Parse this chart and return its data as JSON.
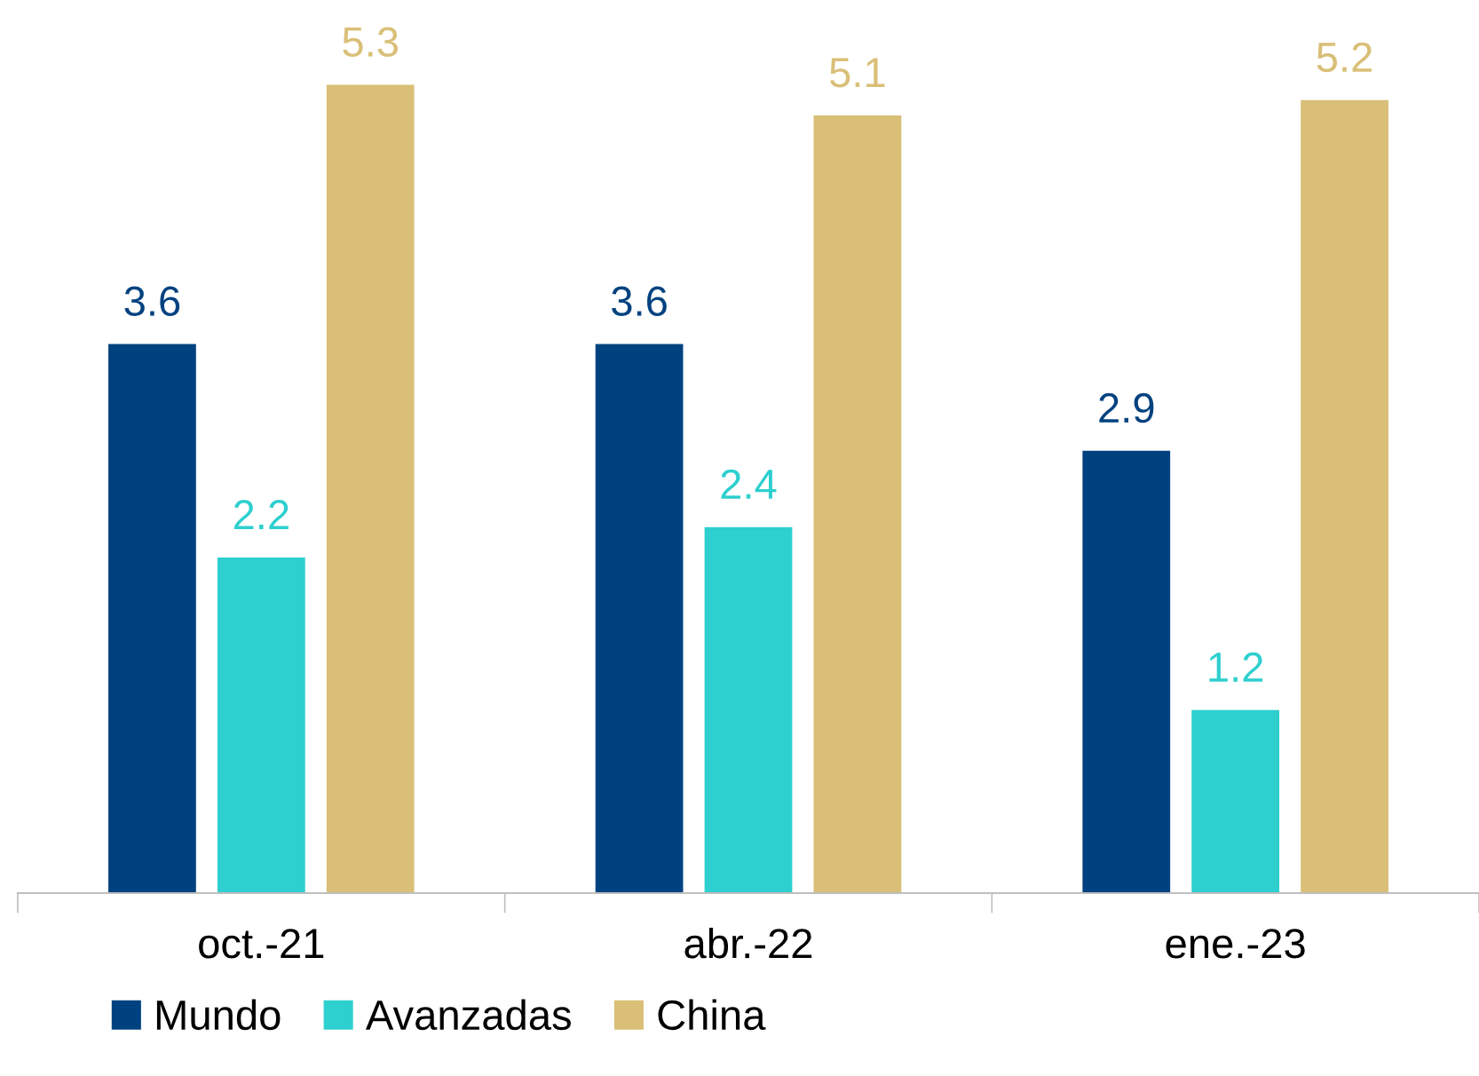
{
  "chart_data": {
    "type": "bar",
    "categories": [
      "oct.-21",
      "abr.-22",
      "ene.-23"
    ],
    "series": [
      {
        "name": "Mundo",
        "color": "#00427f",
        "values": [
          3.6,
          3.6,
          2.9
        ]
      },
      {
        "name": "Avanzadas",
        "color": "#2ecfcf",
        "values": [
          2.2,
          2.4,
          1.2
        ]
      },
      {
        "name": "China",
        "color": "#d9bf77",
        "values": [
          5.3,
          5.1,
          5.2
        ]
      }
    ],
    "data_labels": true,
    "legend": "bottom left",
    "grid": false,
    "tick_labels": "x"
  }
}
